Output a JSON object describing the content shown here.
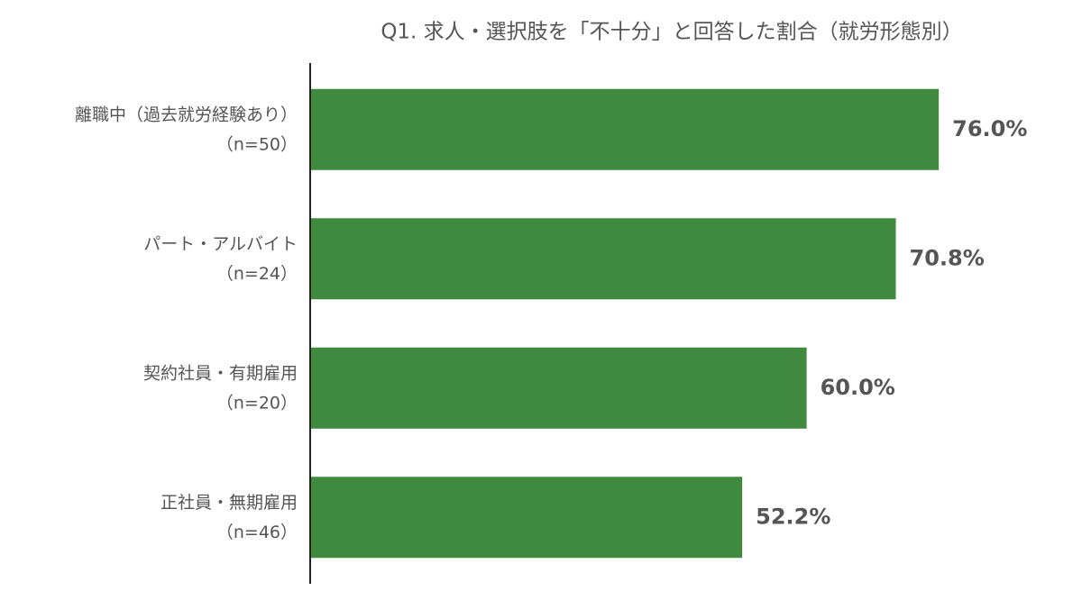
{
  "chart_data": {
    "type": "bar",
    "orientation": "horizontal",
    "title": "Q1. 求人・選択肢を「不十分」と回答した割合（就労形態別）",
    "categories": [
      "離職中（過去就労経験あり）",
      "パート・アルバイト",
      "契約社員・有期雇用",
      "正社員・無期雇用"
    ],
    "category_notes": [
      "（n=50）",
      "（n=24）",
      "（n=20）",
      "（n=46）"
    ],
    "values": [
      76.0,
      70.8,
      60.0,
      52.2
    ],
    "value_labels": [
      "76.0%",
      "70.8%",
      "60.0%",
      "52.2%"
    ],
    "color": "#3f8a3f"
  }
}
